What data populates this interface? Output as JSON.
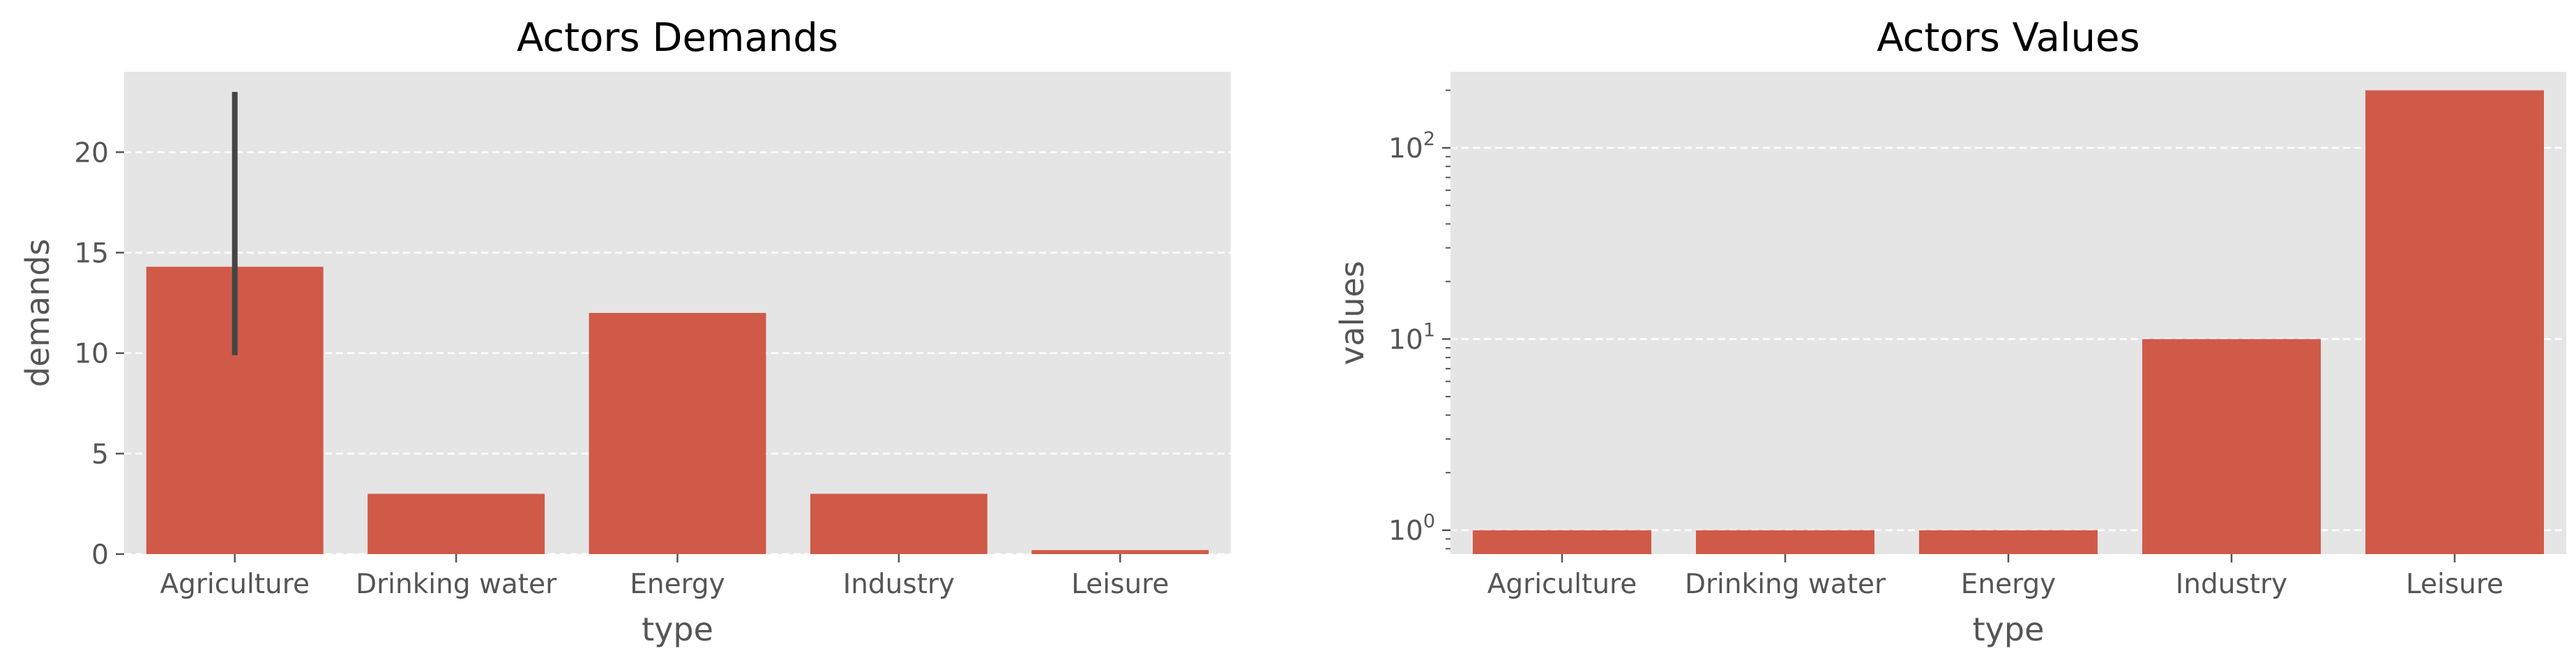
{
  "chart_data": [
    {
      "type": "bar",
      "title": "Actors Demands",
      "xlabel": "type",
      "ylabel": "demands",
      "categories": [
        "Agriculture",
        "Drinking water",
        "Energy",
        "Industry",
        "Leisure"
      ],
      "values": [
        14.3,
        3.0,
        12.0,
        3.0,
        0.2
      ],
      "error_bars": [
        {
          "category": "Agriculture",
          "low": 9.9,
          "high": 23.0
        }
      ],
      "ylim": [
        0,
        24
      ],
      "yticks": [
        0,
        5,
        10,
        15,
        20
      ],
      "yscale": "linear",
      "grid": true
    },
    {
      "type": "bar",
      "title": "Actors Values",
      "xlabel": "type",
      "ylabel": "values",
      "categories": [
        "Agriculture",
        "Drinking water",
        "Energy",
        "Industry",
        "Leisure"
      ],
      "values": [
        1,
        1,
        1,
        10,
        200
      ],
      "ylim": [
        0.75,
        250
      ],
      "yticks": [
        1,
        10,
        100
      ],
      "ytick_labels": [
        {
          "base": "10",
          "exp": "0"
        },
        {
          "base": "10",
          "exp": "1"
        },
        {
          "base": "10",
          "exp": "2"
        }
      ],
      "yscale": "log",
      "grid": true
    }
  ],
  "style": {
    "bar_color": "#d05a48",
    "panel_bg": "#e5e5e5",
    "grid_color": "#ffffff",
    "errorbar_color": "#444444",
    "text_color": "#555555"
  }
}
